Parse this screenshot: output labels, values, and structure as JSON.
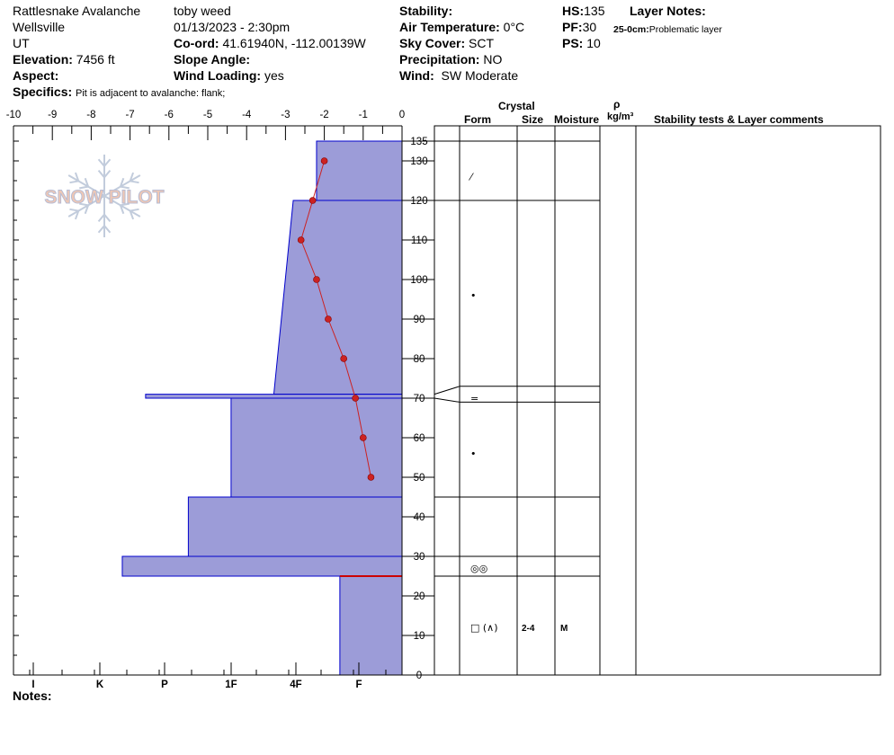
{
  "header": {
    "location": "Rattlesnake Avalanche",
    "region": "Wellsville",
    "state": "UT",
    "elevation_label": "Elevation:",
    "elevation_value": "7456 ft",
    "aspect_label": "Aspect:",
    "aspect_value": "",
    "specifics_label": "Specifics:",
    "specifics_value": "Pit is adjacent to avalanche: flank;",
    "observer": "toby weed",
    "datetime": "01/13/2023 - 2:30pm",
    "coord_label": "Co-ord:",
    "coord_value": "41.61940N, -112.00139W",
    "slope_label": "Slope Angle:",
    "slope_value": "",
    "wind_loading_label": "Wind Loading:",
    "wind_loading_value": "yes",
    "stability_label": "Stability:",
    "stability_value": "",
    "air_temp_label": "Air Temperature:",
    "air_temp_value": "0°C",
    "sky_label": "Sky Cover:",
    "sky_value": "SCT",
    "precip_label": "Precipitation:",
    "precip_value": "NO",
    "wind_label": "Wind:",
    "wind_value": "SW Moderate",
    "hs_label": "HS:",
    "hs_value": "135",
    "pf_label": "PF:",
    "pf_value": "30",
    "ps_label": "PS:",
    "ps_value": "10",
    "layer_notes_label": "Layer Notes:",
    "layer_note_range": "25-0cm:",
    "layer_note_text": "Problematic layer"
  },
  "logo": {
    "text": "SNOW PILOT"
  },
  "notes_label": "Notes:",
  "colors": {
    "hardness_fill": "#9c9cd8",
    "hardness_stroke": "#0000cc",
    "temp_line": "#cc2222",
    "weak_layer": "#cc0000"
  },
  "table_headers": {
    "crystal": "Crystal",
    "form": "Form",
    "size": "Size",
    "moisture": "Moisture",
    "rho": "ρ",
    "density_unit": "kg/m³",
    "stability": "Stability tests & Layer comments"
  },
  "chart_data": {
    "type": "snow_profile",
    "temperature_axis": {
      "ticks": [
        "-10",
        "-9",
        "-8",
        "-7",
        "-6",
        "-5",
        "-4",
        "-3",
        "-2",
        "-1",
        "0"
      ],
      "range": [
        -10,
        0
      ]
    },
    "depth_axis": {
      "ticks": [
        "135",
        "130",
        "120",
        "110",
        "100",
        "90",
        "80",
        "70",
        "60",
        "50",
        "40",
        "30",
        "20",
        "10",
        "0"
      ],
      "range": [
        0,
        135
      ]
    },
    "hardness_axis": {
      "labels": [
        "I",
        "K",
        "P",
        "1F",
        "4F",
        "F"
      ]
    },
    "temperature_profile": [
      {
        "depth": 130,
        "temp": -2.0
      },
      {
        "depth": 120,
        "temp": -2.3
      },
      {
        "depth": 110,
        "temp": -2.6
      },
      {
        "depth": 100,
        "temp": -2.2
      },
      {
        "depth": 90,
        "temp": -1.9
      },
      {
        "depth": 80,
        "temp": -1.5
      },
      {
        "depth": 70,
        "temp": -1.2
      },
      {
        "depth": 60,
        "temp": -1.0
      },
      {
        "depth": 50,
        "temp": -0.8
      }
    ],
    "hardness_layers": [
      {
        "top": 135,
        "bottom": 120,
        "hardness_top": -2.2,
        "hardness_bottom": -2.2
      },
      {
        "top": 120,
        "bottom": 71,
        "hardness_top": -2.8,
        "hardness_bottom": -3.3
      },
      {
        "top": 71,
        "bottom": 70,
        "hardness_top": -6.6,
        "hardness_bottom": -6.6
      },
      {
        "top": 70,
        "bottom": 45,
        "hardness_top": -4.4,
        "hardness_bottom": -4.4
      },
      {
        "top": 45,
        "bottom": 30,
        "hardness_top": -5.5,
        "hardness_bottom": -5.5
      },
      {
        "top": 30,
        "bottom": 25,
        "hardness_top": -7.2,
        "hardness_bottom": -7.2
      },
      {
        "top": 25,
        "bottom": 0,
        "hardness_top": -1.6,
        "hardness_bottom": -1.6
      }
    ],
    "weak_layer_depth": 25,
    "layer_boundaries": [
      135,
      120,
      73,
      69,
      45,
      30,
      25
    ],
    "layer_table": [
      {
        "depth": 126,
        "form": "⁄"
      },
      {
        "depth": 96,
        "form": "•"
      },
      {
        "depth": 70,
        "form": "="
      },
      {
        "depth": 56,
        "form": "•"
      },
      {
        "depth": 27,
        "form": "◎◎"
      },
      {
        "depth": 12,
        "form": "□ (∧)",
        "size": "2-4",
        "moisture": "M"
      }
    ]
  }
}
